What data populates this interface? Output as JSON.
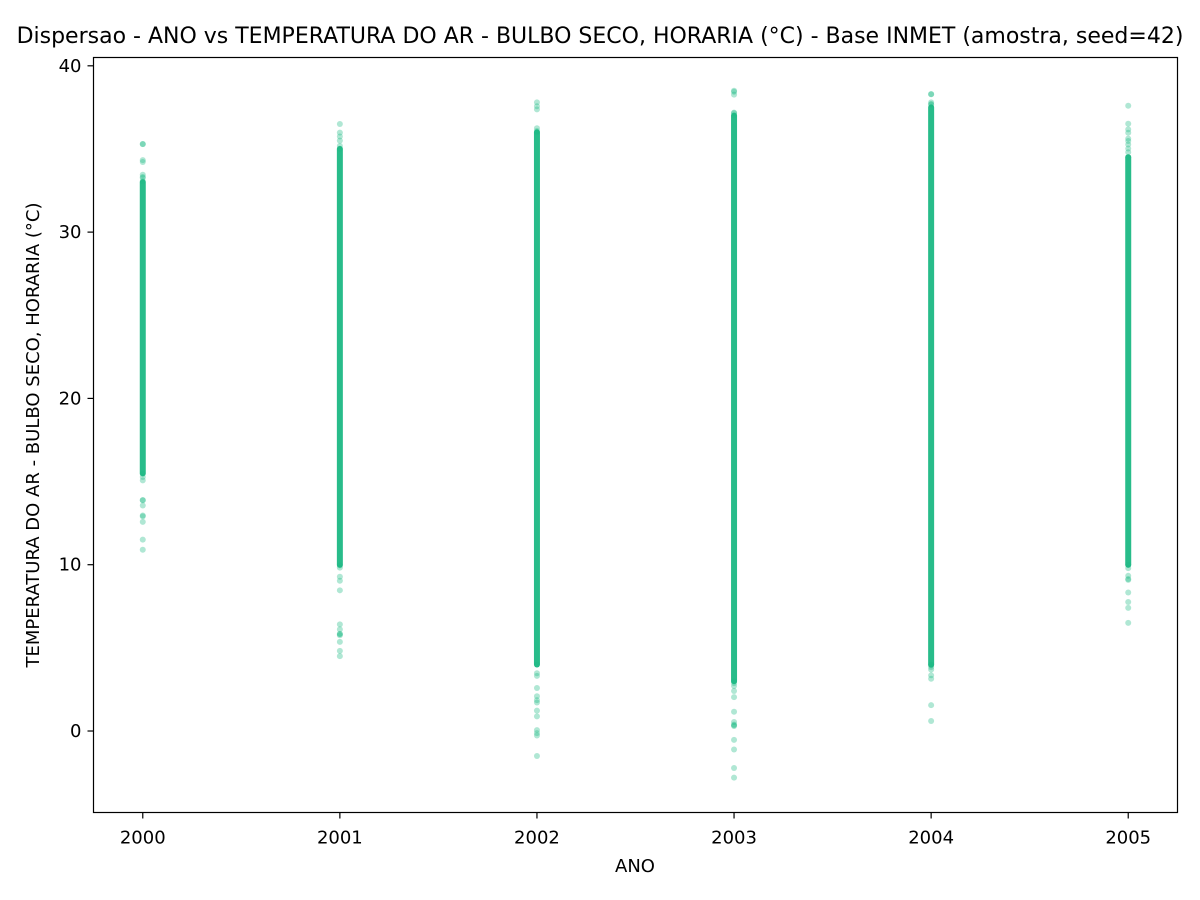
{
  "chart_data": {
    "type": "scatter",
    "title": "Dispersao - ANO vs TEMPERATURA DO AR - BULBO SECO, HORARIA (°C) - Base INMET (amostra, seed=42)",
    "xlabel": "ANO",
    "ylabel": "TEMPERATURA DO AR - BULBO SECO, HORARIA (°C)",
    "xlim": [
      1999.75,
      2005.25
    ],
    "ylim": [
      -4.9,
      40.5
    ],
    "xticks": [
      2000,
      2001,
      2002,
      2003,
      2004,
      2005
    ],
    "xtick_labels": [
      "2000",
      "2001",
      "2002",
      "2003",
      "2004",
      "2005"
    ],
    "yticks": [
      0,
      10,
      20,
      30,
      40
    ],
    "ytick_labels": [
      "0",
      "10",
      "20",
      "30",
      "40"
    ],
    "grid": false,
    "point_color": "#1db984",
    "series": [
      {
        "values": [
          {
            "x": 2000,
            "min": 10.9,
            "max": 35.3,
            "dense_low": 15.5,
            "dense_high": 33.0
          },
          {
            "x": 2001,
            "min": 4.5,
            "max": 36.5,
            "dense_low": 10.0,
            "dense_high": 35.0
          },
          {
            "x": 2002,
            "min": -1.5,
            "max": 37.8,
            "dense_low": 4.0,
            "dense_high": 36.0
          },
          {
            "x": 2003,
            "min": -2.8,
            "max": 38.5,
            "dense_low": 3.0,
            "dense_high": 37.0
          },
          {
            "x": 2004,
            "min": 0.6,
            "max": 38.3,
            "dense_low": 4.0,
            "dense_high": 37.5
          },
          {
            "x": 2005,
            "min": 6.5,
            "max": 37.6,
            "dense_low": 10.0,
            "dense_high": 34.5
          }
        ]
      }
    ]
  }
}
